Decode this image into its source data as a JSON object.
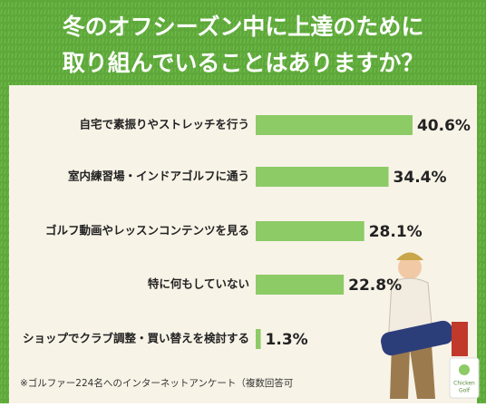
{
  "chart_data": {
    "type": "bar",
    "title": [
      "冬のオフシーズン中に上達のために",
      "取り組んでいることはありますか？"
    ],
    "categories": [
      "自宅で素振りやストレッチを行う",
      "室内練習場・インドアゴルフに通う",
      "ゴルフ動画やレッスンコンテンツを見る",
      "特に何もしていない",
      "ショップでクラブ調整・買い替えを検討する"
    ],
    "values": [
      40.6,
      34.4,
      28.1,
      22.8,
      1.3
    ],
    "value_labels": [
      "40.6%",
      "34.4%",
      "28.1%",
      "22.8%",
      "1.3%"
    ],
    "color": "#8ccb66",
    "note": "※ゴルファー224名へのインターネットアンケート（複数回答可",
    "logo": [
      "Chicken",
      "Golf"
    ]
  }
}
